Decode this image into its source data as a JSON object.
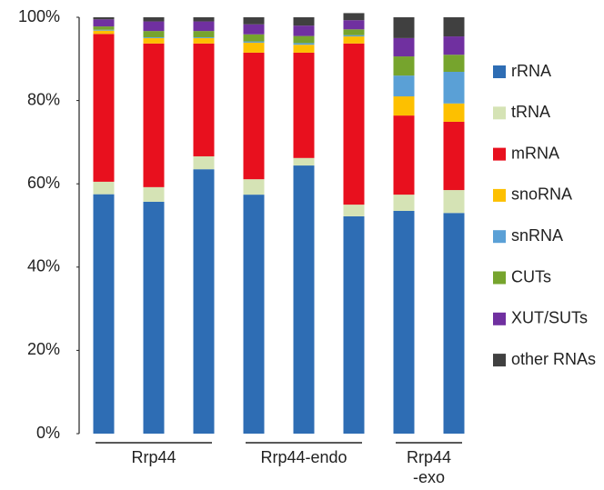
{
  "chart_data": {
    "type": "stacked-bar",
    "categories": [
      null,
      null,
      null,
      null,
      null,
      null,
      null,
      null
    ],
    "groups": [
      {
        "label": "Rrp44",
        "bars": 3
      },
      {
        "label": "Rrp44-endo",
        "bars": 3
      },
      {
        "label": "Rrp44\n-exo",
        "bars": 2
      }
    ],
    "series": [
      {
        "name": "rRNA",
        "color": "#2e6db4",
        "values": [
          57.5,
          55.7,
          63.5,
          57.4,
          64.4,
          52.2,
          53.5,
          53
        ]
      },
      {
        "name": "tRNA",
        "color": "#d5e3b5",
        "values": [
          3,
          3.5,
          3.1,
          3.7,
          1.8,
          2.8,
          3.9,
          5.5
        ]
      },
      {
        "name": "mRNA",
        "color": "#e8101e",
        "values": [
          35.5,
          34.5,
          27.1,
          30.4,
          25.3,
          38.7,
          19,
          16.4
        ]
      },
      {
        "name": "snoRNA",
        "color": "#fdc000",
        "values": [
          0.8,
          1.3,
          1.3,
          2.4,
          1.9,
          1.7,
          4.6,
          4.4
        ]
      },
      {
        "name": "snRNA",
        "color": "#5aa0d6",
        "values": [
          0.2,
          0.2,
          0.2,
          0.3,
          0.4,
          0.3,
          5,
          7.6
        ]
      },
      {
        "name": "CUTs",
        "color": "#76a42d",
        "values": [
          0.8,
          1.5,
          1.5,
          1.7,
          1.7,
          1.4,
          4.6,
          4.1
        ]
      },
      {
        "name": "XUT/SUTs",
        "color": "#7030a0",
        "values": [
          1.7,
          2.3,
          2.3,
          2.4,
          2.5,
          2.2,
          4.4,
          4.4
        ]
      },
      {
        "name": "other RNAs",
        "color": "#404040",
        "values": [
          0.5,
          1,
          1,
          1.7,
          2,
          1.7,
          5,
          4.6
        ]
      }
    ],
    "ylim": [
      0,
      100
    ],
    "yticks": [
      {
        "value": 0,
        "label": "0%"
      },
      {
        "value": 20,
        "label": "20%"
      },
      {
        "value": 40,
        "label": "40%"
      },
      {
        "value": 60,
        "label": "60%"
      },
      {
        "value": 80,
        "label": "80%"
      },
      {
        "value": 100,
        "label": "100%"
      }
    ],
    "legend": "right"
  }
}
